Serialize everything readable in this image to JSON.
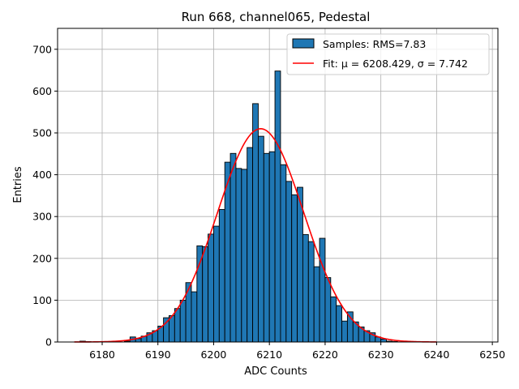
{
  "chart_data": {
    "type": "bar",
    "title": "Run 668, channel065, Pedestal",
    "xlabel": "ADC Counts",
    "ylabel": "Entries",
    "xlim": [
      6172,
      6251
    ],
    "ylim": [
      0,
      750
    ],
    "xticks": [
      6180,
      6190,
      6200,
      6210,
      6220,
      6230,
      6240,
      6250
    ],
    "yticks": [
      0,
      100,
      200,
      300,
      400,
      500,
      600,
      700
    ],
    "grid": true,
    "legend_position": "top-right",
    "bar_color": "#1f77b4",
    "fit_color": "#ff0000",
    "bin_width": 1,
    "bins": [
      [
        6176,
        2
      ],
      [
        6177,
        1
      ],
      [
        6184,
        2
      ],
      [
        6185,
        12
      ],
      [
        6186,
        8
      ],
      [
        6187,
        14
      ],
      [
        6188,
        22
      ],
      [
        6189,
        27
      ],
      [
        6190,
        38
      ],
      [
        6191,
        58
      ],
      [
        6192,
        63
      ],
      [
        6193,
        80
      ],
      [
        6194,
        100
      ],
      [
        6195,
        142
      ],
      [
        6196,
        120
      ],
      [
        6197,
        230
      ],
      [
        6198,
        228
      ],
      [
        6199,
        258
      ],
      [
        6200,
        277
      ],
      [
        6201,
        317
      ],
      [
        6202,
        430
      ],
      [
        6203,
        451
      ],
      [
        6204,
        415
      ],
      [
        6205,
        413
      ],
      [
        6206,
        465
      ],
      [
        6207,
        570
      ],
      [
        6208,
        492
      ],
      [
        6209,
        451
      ],
      [
        6210,
        455
      ],
      [
        6211,
        648
      ],
      [
        6212,
        424
      ],
      [
        6213,
        384
      ],
      [
        6214,
        352
      ],
      [
        6215,
        370
      ],
      [
        6216,
        257
      ],
      [
        6217,
        240
      ],
      [
        6218,
        180
      ],
      [
        6219,
        248
      ],
      [
        6220,
        154
      ],
      [
        6221,
        108
      ],
      [
        6222,
        87
      ],
      [
        6223,
        50
      ],
      [
        6224,
        72
      ],
      [
        6225,
        48
      ],
      [
        6226,
        36
      ],
      [
        6227,
        27
      ],
      [
        6228,
        22
      ],
      [
        6229,
        12
      ],
      [
        6230,
        7
      ],
      [
        6231,
        2
      ],
      [
        6232,
        1
      ],
      [
        6234,
        1
      ]
    ],
    "fit": {
      "mu": 6208.429,
      "sigma": 7.742,
      "amplitude": 510,
      "x_range": [
        6175,
        6240
      ]
    },
    "legend": [
      {
        "label": "Samples: RMS=7.83",
        "kind": "patch"
      },
      {
        "label": "Fit: μ = 6208.429, σ = 7.742",
        "kind": "line"
      }
    ]
  }
}
